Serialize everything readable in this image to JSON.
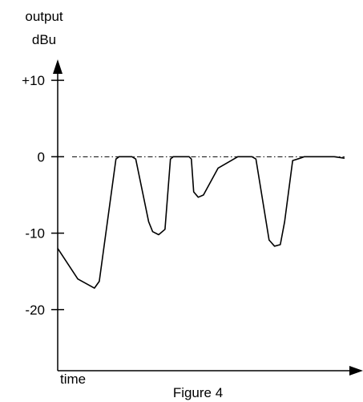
{
  "chart_data": {
    "type": "line",
    "ylabel_line1": "output",
    "ylabel_line2": "dBu",
    "xlabel": "time",
    "caption": "Figure 4",
    "y_ticks": [
      {
        "value": 10,
        "label": "+10"
      },
      {
        "value": 0,
        "label": "0"
      },
      {
        "value": -10,
        "label": "-10"
      },
      {
        "value": -20,
        "label": "-20"
      }
    ],
    "ylim": [
      -28,
      14
    ],
    "xlim": [
      0,
      100
    ],
    "reference_line": {
      "value": 0,
      "style": "dash-dot"
    },
    "grid": false,
    "legend": "none",
    "series": [
      {
        "color": "#000000",
        "points": [
          [
            0,
            -12
          ],
          [
            7,
            -16
          ],
          [
            12.8,
            -17.2
          ],
          [
            14.5,
            -16.3
          ],
          [
            20.3,
            -0.3
          ],
          [
            21.4,
            0
          ],
          [
            25.9,
            0
          ],
          [
            27.2,
            -0.3
          ],
          [
            31.7,
            -8.5
          ],
          [
            33.1,
            -9.8
          ],
          [
            35.2,
            -10.2
          ],
          [
            37.4,
            -9.5
          ],
          [
            39.3,
            -0.3
          ],
          [
            40.3,
            0
          ],
          [
            45.8,
            0
          ],
          [
            46.6,
            -0.3
          ],
          [
            47.4,
            -4.6
          ],
          [
            49,
            -5.3
          ],
          [
            50.8,
            -5
          ],
          [
            55.9,
            -1.5
          ],
          [
            62.8,
            0
          ],
          [
            67.7,
            0
          ],
          [
            69.1,
            -0.3
          ],
          [
            73.7,
            -10.9
          ],
          [
            75.6,
            -11.7
          ],
          [
            77.6,
            -11.5
          ],
          [
            79.1,
            -8.5
          ],
          [
            81.9,
            -0.5
          ],
          [
            84.5,
            -0.2
          ],
          [
            86,
            0
          ],
          [
            96.4,
            0
          ],
          [
            100,
            -0.2
          ]
        ]
      }
    ]
  }
}
